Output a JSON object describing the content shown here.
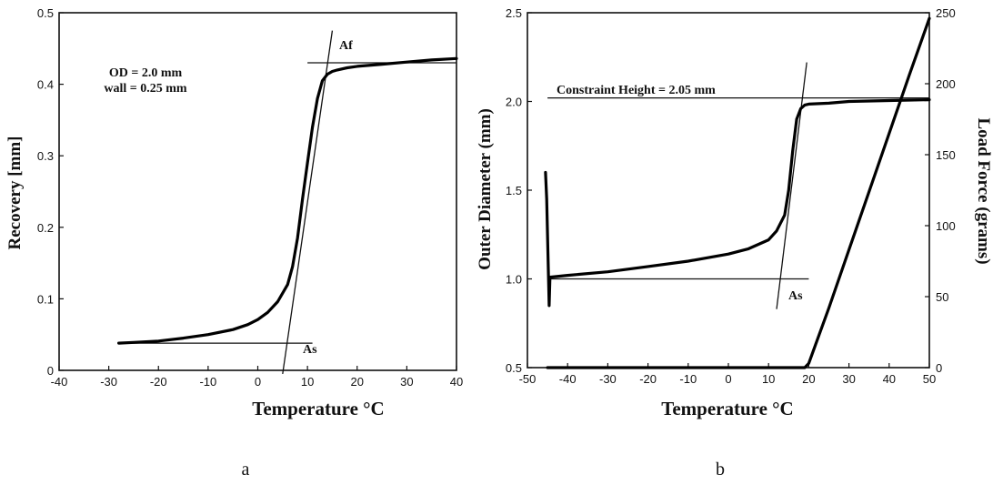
{
  "chart_data": [
    {
      "type": "line",
      "panel_label": "a",
      "xlabel": "Temperature °C",
      "ylabel": "Recovery [mm]",
      "xlim": [
        -40,
        40
      ],
      "ylim": [
        0,
        0.5
      ],
      "xticks": [
        "-40",
        "-30",
        "-20",
        "-10",
        "0",
        "10",
        "20",
        "30",
        "40"
      ],
      "yticks": [
        "0",
        "0.1",
        "0.2",
        "0.3",
        "0.4",
        "0.5"
      ],
      "annotations": [
        "OD = 2.0 mm",
        "wall  =  0.25 mm",
        "Af",
        "As"
      ],
      "series": [
        {
          "x": [
            -28,
            -25,
            -20,
            -15,
            -10,
            -5,
            -2,
            0,
            2,
            4,
            6,
            7,
            8,
            9,
            10,
            11,
            12,
            13,
            14,
            15,
            16,
            18,
            20,
            25,
            30,
            35,
            40
          ],
          "y": [
            0.038,
            0.039,
            0.041,
            0.045,
            0.05,
            0.057,
            0.064,
            0.071,
            0.081,
            0.096,
            0.12,
            0.145,
            0.185,
            0.24,
            0.29,
            0.34,
            0.38,
            0.405,
            0.414,
            0.418,
            0.42,
            0.423,
            0.425,
            0.428,
            0.431,
            0.434,
            0.436
          ]
        }
      ],
      "reference_lines": [
        {
          "x": [
            -28,
            11
          ],
          "y": [
            0.038,
            0.038
          ]
        },
        {
          "x": [
            10,
            40
          ],
          "y": [
            0.43,
            0.43
          ]
        },
        {
          "x": [
            5,
            15
          ],
          "y": [
            -0.005,
            0.475
          ]
        }
      ]
    },
    {
      "type": "line",
      "panel_label": "b",
      "xlabel": "Temperature °C",
      "ylabel": "Outer Diameter (mm)",
      "ylabel_right": "Load Force (grams)",
      "xlim": [
        -50,
        50
      ],
      "ylim": [
        0.5,
        2.5
      ],
      "ylim_right": [
        0,
        250
      ],
      "xticks": [
        "-50",
        "-40",
        "-30",
        "-20",
        "-10",
        "0",
        "10",
        "20",
        "30",
        "40",
        "50"
      ],
      "yticks": [
        "0.5",
        "1.0",
        "1.5",
        "2.0",
        "2.5"
      ],
      "yticks_right": [
        "0",
        "50",
        "100",
        "150",
        "200",
        "250"
      ],
      "annotations": [
        "Constraint Height = 2.05 mm",
        "As"
      ],
      "series": [
        {
          "axis": "left",
          "x": [
            -45.5,
            -45.2,
            -45,
            -44.8,
            -44.6,
            -44.4,
            -40,
            -30,
            -20,
            -10,
            0,
            5,
            10,
            12,
            14,
            15,
            16,
            17,
            18,
            19,
            20,
            25,
            30,
            40,
            50
          ],
          "y": [
            1.6,
            1.45,
            1.25,
            1.05,
            0.85,
            1.01,
            1.02,
            1.04,
            1.07,
            1.1,
            1.14,
            1.17,
            1.22,
            1.27,
            1.36,
            1.5,
            1.72,
            1.9,
            1.96,
            1.98,
            1.985,
            1.99,
            2.0,
            2.005,
            2.01
          ]
        },
        {
          "axis": "right",
          "x": [
            -45,
            19,
            20,
            25,
            30,
            35,
            40,
            45,
            50
          ],
          "y": [
            0,
            0,
            3,
            42,
            83,
            124,
            165,
            206,
            246
          ]
        }
      ],
      "reference_lines": [
        {
          "x": [
            -45,
            50
          ],
          "y": [
            2.02,
            2.02
          ]
        },
        {
          "x": [
            -45,
            20
          ],
          "y": [
            1.0,
            1.0
          ]
        },
        {
          "x": [
            12,
            19.5
          ],
          "y": [
            0.83,
            2.22
          ]
        }
      ]
    }
  ]
}
